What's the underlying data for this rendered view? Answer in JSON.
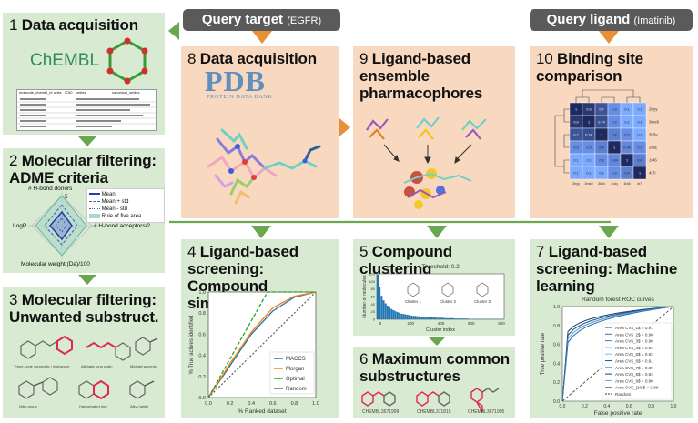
{
  "headers": {
    "query_target": {
      "label": "Query target",
      "sub": "(EGFR)"
    },
    "query_ligand": {
      "label": "Query ligand",
      "sub": "(Imatinib)"
    }
  },
  "panels": {
    "p1": {
      "num": "1",
      "title": "Data acquisition",
      "logo": "ChEMBL",
      "table_headers": [
        "molecule_chembl_id",
        "units",
        "IC50",
        "smiles",
        "canonical_smiles"
      ]
    },
    "p2": {
      "num": "2",
      "title": "Molecular filtering: ADME criteria",
      "axes": {
        "top": "# H-bond donors",
        "right": "# H-bond acceptors/2",
        "bottom": "Molecular weight (Da)/100",
        "left": "LogP"
      },
      "ring_label": "5",
      "legend": [
        "Mean",
        "Mean + std",
        "Mean - std",
        "Rule of five area"
      ]
    },
    "p3": {
      "num": "3",
      "title": "Molecular filtering: Unwanted substruct.",
      "captions": [
        "Three-cycle / aromatic / hydrazone",
        "Aliphatic long chain",
        "Michael acceptor",
        "Nitro group",
        "Halogenated ring",
        "Alkyl halide"
      ]
    },
    "p4": {
      "num": "4",
      "title": "Ligand-based screening: Compound similarity"
    },
    "p5": {
      "num": "5",
      "title": "Compound clustering"
    },
    "p6": {
      "num": "6",
      "title": "Maximum common substructures",
      "labels": [
        "CHEMBL3671999",
        "CHEMBL371815",
        "CHEMBL3671995"
      ]
    },
    "p7": {
      "num": "7",
      "title": "Ligand-based screening: Machine learning"
    },
    "p8": {
      "num": "8",
      "title": "Data acquisition",
      "logo": "PDB",
      "logo_sub": "PROTEIN DATA BANK"
    },
    "p9": {
      "num": "9",
      "title": "Ligand-based ensemble pharmacophores"
    },
    "p10": {
      "num": "10",
      "title": "Binding site comparison",
      "row_labels": [
        "2hyy",
        "3ms9",
        "3k5v",
        "2oiq",
        "1t46",
        "4r7i"
      ]
    }
  },
  "colors": {
    "green_panel": "#d9ead3",
    "peach_panel": "#f8d9c0",
    "arrow_green": "#6aa84f",
    "arrow_orange": "#e69138",
    "header_gray": "#5a5a5a"
  },
  "chart_data": [
    {
      "type": "line",
      "title": "",
      "xlabel": "% Ranked dataset",
      "ylabel": "% True actives identified",
      "xlim": [
        0,
        1
      ],
      "ylim": [
        0,
        1
      ],
      "ticks": [
        "0.0",
        "0.2",
        "0.4",
        "0.6",
        "0.8",
        "1.0"
      ],
      "legend_position": "bottom-right",
      "series": [
        {
          "name": "MACCS",
          "color": "#1f77b4",
          "x": [
            0,
            0.2,
            0.4,
            0.6,
            0.8,
            1.0
          ],
          "y": [
            0,
            0.3,
            0.6,
            0.82,
            0.95,
            1.0
          ]
        },
        {
          "name": "Morgan",
          "color": "#ff7f0e",
          "x": [
            0,
            0.2,
            0.4,
            0.6,
            0.8,
            1.0
          ],
          "y": [
            0,
            0.32,
            0.62,
            0.85,
            0.96,
            1.0
          ]
        },
        {
          "name": "Optimal",
          "color": "#2ca02c",
          "x": [
            0,
            0.55,
            1.0
          ],
          "y": [
            0,
            1.0,
            1.0
          ]
        },
        {
          "name": "Random",
          "color": "#666666",
          "x": [
            0,
            1.0
          ],
          "y": [
            0,
            1.0
          ]
        }
      ]
    },
    {
      "type": "bar",
      "title": "Threshold: 0.2",
      "xlabel": "Cluster index",
      "ylabel": "Number of molecules",
      "ylim": [
        0,
        120
      ],
      "yticks": [
        "0",
        "20",
        "40",
        "60",
        "80",
        "100",
        "120"
      ],
      "xticks": [
        "0",
        "200",
        "400",
        "600",
        "800"
      ],
      "values": [
        118,
        85,
        62,
        50,
        42,
        36,
        31,
        27,
        24,
        21,
        19,
        17,
        15,
        14,
        13,
        12,
        11,
        10,
        9,
        9,
        8,
        8,
        7,
        7,
        6,
        6,
        6,
        5,
        5,
        5,
        4,
        4,
        4,
        4,
        3,
        3,
        3,
        3,
        3,
        2,
        2,
        2,
        2,
        2,
        2,
        2,
        1,
        1,
        1,
        1,
        1,
        1,
        1,
        1,
        1,
        1,
        1,
        1,
        1,
        1,
        1,
        1,
        1,
        1
      ],
      "annotations": [
        "Cluster 1",
        "Cluster 2",
        "Cluster 3"
      ]
    },
    {
      "type": "line",
      "title": "Random forest ROC curves",
      "xlabel": "False positive rate",
      "ylabel": "True positive rate",
      "xlim": [
        0,
        1
      ],
      "ylim": [
        0,
        1
      ],
      "ticks": [
        "0.0",
        "0.2",
        "0.4",
        "0.6",
        "0.8",
        "1.0"
      ],
      "series": [
        {
          "name": "Area CV$_1$ = 0.91",
          "auc": 0.91
        },
        {
          "name": "Area CV$_2$ = 0.90",
          "auc": 0.9
        },
        {
          "name": "Area CV$_3$ = 0.90",
          "auc": 0.9
        },
        {
          "name": "Area CV$_4$ = 0.92",
          "auc": 0.92
        },
        {
          "name": "Area CV$_5$ = 0.92",
          "auc": 0.92
        },
        {
          "name": "Area CV$_6$ = 0.91",
          "auc": 0.91
        },
        {
          "name": "Area CV$_7$ = 0.89",
          "auc": 0.89
        },
        {
          "name": "Area CV$_8$ = 0.92",
          "auc": 0.92
        },
        {
          "name": "Area CV$_9$ = 0.90",
          "auc": 0.9
        },
        {
          "name": "Area CV$_{10}$ = 0.89",
          "auc": 0.89
        },
        {
          "name": "Random",
          "auc": 0.5
        }
      ]
    },
    {
      "type": "heatmap",
      "title": "",
      "rows": [
        "2hyy",
        "3ms9",
        "3k5v",
        "2oiq",
        "1t46",
        "4r7i"
      ],
      "values": [
        [
          1.0,
          0.9,
          0.7,
          0.3,
          0.1,
          0.1
        ],
        [
          0.9,
          1.0,
          0.74,
          0.3,
          0.1,
          0.1
        ],
        [
          0.7,
          0.74,
          1.0,
          0.4,
          0.3,
          0.1
        ],
        [
          0.3,
          0.3,
          0.4,
          1.0,
          0.34,
          0.3
        ],
        [
          0.1,
          0.1,
          0.3,
          0.34,
          1.0,
          0.4
        ],
        [
          0.1,
          0.1,
          0.1,
          0.3,
          0.4,
          1.0
        ]
      ]
    }
  ]
}
